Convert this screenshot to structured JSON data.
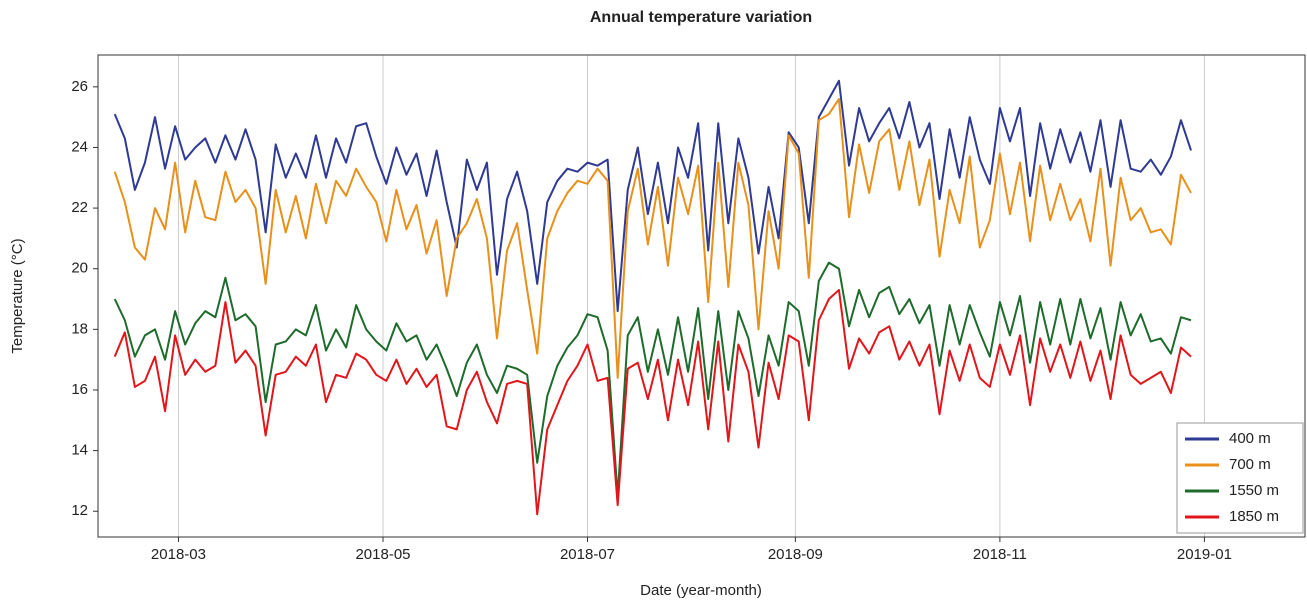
{
  "chart_data": {
    "type": "line",
    "title": "Annual temperature variation",
    "xlabel": "Date (year-month)",
    "ylabel": "Temperature (°C)",
    "x": [
      "2018-02-10",
      "2018-02-13",
      "2018-02-16",
      "2018-02-19",
      "2018-02-22",
      "2018-02-25",
      "2018-02-28",
      "2018-03-03",
      "2018-03-06",
      "2018-03-09",
      "2018-03-12",
      "2018-03-15",
      "2018-03-18",
      "2018-03-21",
      "2018-03-24",
      "2018-03-27",
      "2018-03-30",
      "2018-04-02",
      "2018-04-05",
      "2018-04-08",
      "2018-04-11",
      "2018-04-14",
      "2018-04-17",
      "2018-04-20",
      "2018-04-23",
      "2018-04-26",
      "2018-04-29",
      "2018-05-02",
      "2018-05-05",
      "2018-05-08",
      "2018-05-11",
      "2018-05-14",
      "2018-05-17",
      "2018-05-20",
      "2018-05-23",
      "2018-05-26",
      "2018-05-29",
      "2018-06-01",
      "2018-06-04",
      "2018-06-07",
      "2018-06-10",
      "2018-06-13",
      "2018-06-16",
      "2018-06-19",
      "2018-06-22",
      "2018-06-25",
      "2018-06-28",
      "2018-07-01",
      "2018-07-04",
      "2018-07-07",
      "2018-07-10",
      "2018-07-13",
      "2018-07-16",
      "2018-07-19",
      "2018-07-22",
      "2018-07-25",
      "2018-07-28",
      "2018-07-31",
      "2018-08-03",
      "2018-08-06",
      "2018-08-09",
      "2018-08-12",
      "2018-08-15",
      "2018-08-18",
      "2018-08-21",
      "2018-08-24",
      "2018-08-27",
      "2018-08-30",
      "2018-09-02",
      "2018-09-05",
      "2018-09-08",
      "2018-09-11",
      "2018-09-14",
      "2018-09-17",
      "2018-09-20",
      "2018-09-23",
      "2018-09-26",
      "2018-09-29",
      "2018-10-02",
      "2018-10-05",
      "2018-10-08",
      "2018-10-11",
      "2018-10-14",
      "2018-10-17",
      "2018-10-20",
      "2018-10-23",
      "2018-10-26",
      "2018-10-29",
      "2018-11-01",
      "2018-11-04",
      "2018-11-07",
      "2018-11-10",
      "2018-11-13",
      "2018-11-16",
      "2018-11-19",
      "2018-11-22",
      "2018-11-25",
      "2018-11-28",
      "2018-12-01",
      "2018-12-04",
      "2018-12-07",
      "2018-12-10",
      "2018-12-13",
      "2018-12-16",
      "2018-12-19",
      "2018-12-22",
      "2018-12-25",
      "2018-12-28"
    ],
    "series": [
      {
        "name": "400 m",
        "color": "#2e3a93",
        "values": [
          25.1,
          24.3,
          22.6,
          23.5,
          25.0,
          23.3,
          24.7,
          23.6,
          24.0,
          24.3,
          23.5,
          24.4,
          23.6,
          24.6,
          23.6,
          21.2,
          24.1,
          23.0,
          23.8,
          23.0,
          24.4,
          23.0,
          24.3,
          23.5,
          24.7,
          24.8,
          23.7,
          22.8,
          24.0,
          23.1,
          23.8,
          22.4,
          23.9,
          22.2,
          20.7,
          23.6,
          22.6,
          23.5,
          19.8,
          22.3,
          23.2,
          21.9,
          19.5,
          22.2,
          22.9,
          23.3,
          23.2,
          23.5,
          23.4,
          23.6,
          18.6,
          22.6,
          24.0,
          21.8,
          23.5,
          21.5,
          24.0,
          23.0,
          24.8,
          20.6,
          24.8,
          21.5,
          24.3,
          23.0,
          20.5,
          22.7,
          21.0,
          24.5,
          24.0,
          21.5,
          25.0,
          25.6,
          26.2,
          23.4,
          25.3,
          24.2,
          24.8,
          25.3,
          24.3,
          25.5,
          24.0,
          24.8,
          22.3,
          24.6,
          23.0,
          25.0,
          23.6,
          22.8,
          25.3,
          24.2,
          25.3,
          22.4,
          24.8,
          23.3,
          24.6,
          23.5,
          24.5,
          23.2,
          24.9,
          22.7,
          24.9,
          23.3,
          23.2,
          23.6,
          23.1,
          23.7,
          24.9,
          23.9
        ]
      },
      {
        "name": "700 m",
        "color": "#e8901a",
        "values": [
          23.2,
          22.2,
          20.7,
          20.3,
          22.0,
          21.3,
          23.5,
          21.2,
          22.9,
          21.7,
          21.6,
          23.2,
          22.2,
          22.6,
          22.0,
          19.5,
          22.6,
          21.2,
          22.4,
          21.0,
          22.8,
          21.5,
          22.9,
          22.4,
          23.3,
          22.7,
          22.2,
          20.9,
          22.6,
          21.3,
          22.1,
          20.5,
          21.6,
          19.1,
          21.0,
          21.5,
          22.3,
          21.0,
          17.7,
          20.6,
          21.5,
          19.3,
          17.2,
          21.0,
          21.9,
          22.5,
          22.9,
          22.8,
          23.3,
          22.9,
          16.4,
          21.9,
          23.3,
          20.8,
          22.7,
          20.1,
          23.0,
          21.8,
          23.4,
          18.9,
          23.5,
          19.4,
          23.5,
          22.1,
          18.0,
          21.9,
          20.0,
          24.4,
          23.8,
          19.7,
          24.9,
          25.1,
          25.6,
          21.7,
          24.1,
          22.5,
          24.2,
          24.6,
          22.6,
          24.2,
          22.1,
          23.6,
          20.4,
          22.6,
          21.5,
          23.7,
          20.7,
          21.6,
          23.8,
          21.8,
          23.5,
          20.9,
          23.4,
          21.6,
          22.8,
          21.6,
          22.3,
          20.9,
          23.3,
          20.1,
          23.0,
          21.6,
          22.0,
          21.2,
          21.3,
          20.8,
          23.1,
          22.5
        ]
      },
      {
        "name": "1550 m",
        "color": "#1e6b2c",
        "values": [
          19.0,
          18.3,
          17.1,
          17.8,
          18.0,
          17.0,
          18.6,
          17.5,
          18.2,
          18.6,
          18.4,
          19.7,
          18.3,
          18.5,
          18.1,
          15.6,
          17.5,
          17.6,
          18.0,
          17.8,
          18.8,
          17.3,
          18.0,
          17.4,
          18.8,
          18.0,
          17.6,
          17.3,
          18.2,
          17.6,
          17.8,
          17.0,
          17.5,
          16.7,
          15.8,
          16.9,
          17.5,
          16.5,
          15.9,
          16.8,
          16.7,
          16.5,
          13.6,
          15.8,
          16.8,
          17.4,
          17.8,
          18.5,
          18.4,
          17.3,
          12.5,
          17.8,
          18.4,
          16.6,
          18.0,
          16.5,
          18.4,
          16.6,
          18.7,
          15.7,
          18.6,
          16.0,
          18.6,
          17.7,
          15.8,
          17.8,
          16.8,
          18.9,
          18.6,
          16.8,
          19.6,
          20.2,
          20.0,
          18.1,
          19.3,
          18.4,
          19.2,
          19.4,
          18.5,
          19.0,
          18.2,
          18.8,
          16.8,
          18.8,
          17.5,
          18.8,
          17.9,
          17.1,
          18.9,
          17.8,
          19.1,
          16.9,
          18.9,
          17.5,
          19.0,
          17.5,
          19.0,
          17.7,
          18.7,
          17.0,
          18.9,
          17.8,
          18.5,
          17.6,
          17.7,
          17.2,
          18.4,
          18.3
        ]
      },
      {
        "name": "1850 m",
        "color": "#e0161b",
        "values": [
          17.1,
          17.9,
          16.1,
          16.3,
          17.1,
          15.3,
          17.8,
          16.5,
          17.0,
          16.6,
          16.8,
          18.9,
          16.9,
          17.3,
          16.8,
          14.5,
          16.5,
          16.6,
          17.1,
          16.8,
          17.5,
          15.6,
          16.5,
          16.4,
          17.2,
          17.0,
          16.5,
          16.3,
          17.0,
          16.2,
          16.7,
          16.1,
          16.5,
          14.8,
          14.7,
          16.0,
          16.6,
          15.6,
          14.9,
          16.2,
          16.3,
          16.2,
          11.9,
          14.7,
          15.5,
          16.3,
          16.8,
          17.5,
          16.3,
          16.4,
          12.2,
          16.7,
          16.9,
          15.7,
          17.0,
          15.0,
          17.0,
          15.5,
          17.6,
          14.7,
          17.6,
          14.3,
          17.5,
          16.6,
          14.1,
          16.9,
          15.7,
          17.8,
          17.6,
          15.0,
          18.3,
          19.0,
          19.3,
          16.7,
          17.7,
          17.2,
          17.9,
          18.1,
          17.0,
          17.6,
          16.8,
          17.5,
          15.2,
          17.3,
          16.3,
          17.5,
          16.4,
          16.1,
          17.5,
          16.5,
          17.8,
          15.5,
          17.7,
          16.6,
          17.5,
          16.4,
          17.6,
          16.3,
          17.3,
          15.7,
          17.8,
          16.5,
          16.2,
          16.4,
          16.6,
          15.9,
          17.4,
          17.1
        ]
      }
    ],
    "xlim": [
      "2018-02-05",
      "2019-01-31"
    ],
    "xticks": [
      "2018-03",
      "2018-05",
      "2018-07",
      "2018-09",
      "2018-11",
      "2019-01"
    ],
    "ylim": [
      11.15,
      27.05
    ],
    "yticks": [
      12,
      14,
      16,
      18,
      20,
      22,
      24,
      26
    ],
    "grid": "x",
    "legend": "lower right"
  }
}
